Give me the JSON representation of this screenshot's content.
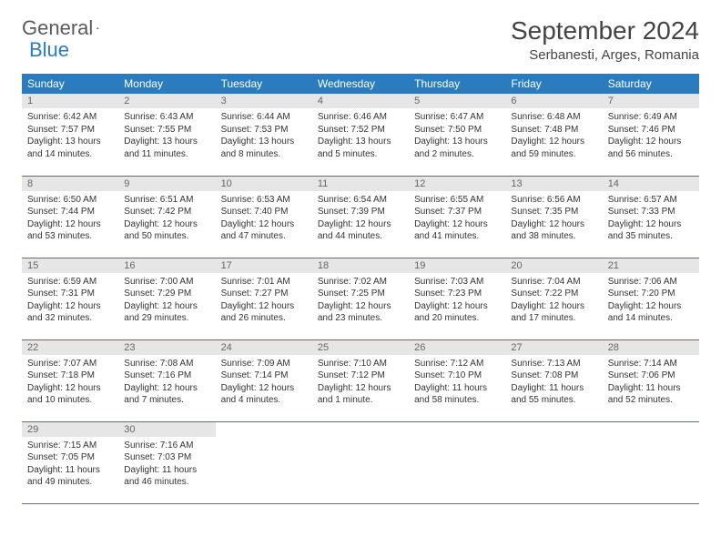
{
  "brand": {
    "part1": "General",
    "part2": "Blue"
  },
  "title": "September 2024",
  "location": "Serbanesti, Arges, Romania",
  "colors": {
    "header_bg": "#2b7bbf",
    "daynum_bg": "#e6e6e6",
    "rule": "#2b7bbf",
    "text": "#333333",
    "title": "#444444"
  },
  "weekdays": [
    "Sunday",
    "Monday",
    "Tuesday",
    "Wednesday",
    "Thursday",
    "Friday",
    "Saturday"
  ],
  "weeks": [
    [
      {
        "n": "1",
        "sr": "Sunrise: 6:42 AM",
        "ss": "Sunset: 7:57 PM",
        "dl": "Daylight: 13 hours and 14 minutes."
      },
      {
        "n": "2",
        "sr": "Sunrise: 6:43 AM",
        "ss": "Sunset: 7:55 PM",
        "dl": "Daylight: 13 hours and 11 minutes."
      },
      {
        "n": "3",
        "sr": "Sunrise: 6:44 AM",
        "ss": "Sunset: 7:53 PM",
        "dl": "Daylight: 13 hours and 8 minutes."
      },
      {
        "n": "4",
        "sr": "Sunrise: 6:46 AM",
        "ss": "Sunset: 7:52 PM",
        "dl": "Daylight: 13 hours and 5 minutes."
      },
      {
        "n": "5",
        "sr": "Sunrise: 6:47 AM",
        "ss": "Sunset: 7:50 PM",
        "dl": "Daylight: 13 hours and 2 minutes."
      },
      {
        "n": "6",
        "sr": "Sunrise: 6:48 AM",
        "ss": "Sunset: 7:48 PM",
        "dl": "Daylight: 12 hours and 59 minutes."
      },
      {
        "n": "7",
        "sr": "Sunrise: 6:49 AM",
        "ss": "Sunset: 7:46 PM",
        "dl": "Daylight: 12 hours and 56 minutes."
      }
    ],
    [
      {
        "n": "8",
        "sr": "Sunrise: 6:50 AM",
        "ss": "Sunset: 7:44 PM",
        "dl": "Daylight: 12 hours and 53 minutes."
      },
      {
        "n": "9",
        "sr": "Sunrise: 6:51 AM",
        "ss": "Sunset: 7:42 PM",
        "dl": "Daylight: 12 hours and 50 minutes."
      },
      {
        "n": "10",
        "sr": "Sunrise: 6:53 AM",
        "ss": "Sunset: 7:40 PM",
        "dl": "Daylight: 12 hours and 47 minutes."
      },
      {
        "n": "11",
        "sr": "Sunrise: 6:54 AM",
        "ss": "Sunset: 7:39 PM",
        "dl": "Daylight: 12 hours and 44 minutes."
      },
      {
        "n": "12",
        "sr": "Sunrise: 6:55 AM",
        "ss": "Sunset: 7:37 PM",
        "dl": "Daylight: 12 hours and 41 minutes."
      },
      {
        "n": "13",
        "sr": "Sunrise: 6:56 AM",
        "ss": "Sunset: 7:35 PM",
        "dl": "Daylight: 12 hours and 38 minutes."
      },
      {
        "n": "14",
        "sr": "Sunrise: 6:57 AM",
        "ss": "Sunset: 7:33 PM",
        "dl": "Daylight: 12 hours and 35 minutes."
      }
    ],
    [
      {
        "n": "15",
        "sr": "Sunrise: 6:59 AM",
        "ss": "Sunset: 7:31 PM",
        "dl": "Daylight: 12 hours and 32 minutes."
      },
      {
        "n": "16",
        "sr": "Sunrise: 7:00 AM",
        "ss": "Sunset: 7:29 PM",
        "dl": "Daylight: 12 hours and 29 minutes."
      },
      {
        "n": "17",
        "sr": "Sunrise: 7:01 AM",
        "ss": "Sunset: 7:27 PM",
        "dl": "Daylight: 12 hours and 26 minutes."
      },
      {
        "n": "18",
        "sr": "Sunrise: 7:02 AM",
        "ss": "Sunset: 7:25 PM",
        "dl": "Daylight: 12 hours and 23 minutes."
      },
      {
        "n": "19",
        "sr": "Sunrise: 7:03 AM",
        "ss": "Sunset: 7:23 PM",
        "dl": "Daylight: 12 hours and 20 minutes."
      },
      {
        "n": "20",
        "sr": "Sunrise: 7:04 AM",
        "ss": "Sunset: 7:22 PM",
        "dl": "Daylight: 12 hours and 17 minutes."
      },
      {
        "n": "21",
        "sr": "Sunrise: 7:06 AM",
        "ss": "Sunset: 7:20 PM",
        "dl": "Daylight: 12 hours and 14 minutes."
      }
    ],
    [
      {
        "n": "22",
        "sr": "Sunrise: 7:07 AM",
        "ss": "Sunset: 7:18 PM",
        "dl": "Daylight: 12 hours and 10 minutes."
      },
      {
        "n": "23",
        "sr": "Sunrise: 7:08 AM",
        "ss": "Sunset: 7:16 PM",
        "dl": "Daylight: 12 hours and 7 minutes."
      },
      {
        "n": "24",
        "sr": "Sunrise: 7:09 AM",
        "ss": "Sunset: 7:14 PM",
        "dl": "Daylight: 12 hours and 4 minutes."
      },
      {
        "n": "25",
        "sr": "Sunrise: 7:10 AM",
        "ss": "Sunset: 7:12 PM",
        "dl": "Daylight: 12 hours and 1 minute."
      },
      {
        "n": "26",
        "sr": "Sunrise: 7:12 AM",
        "ss": "Sunset: 7:10 PM",
        "dl": "Daylight: 11 hours and 58 minutes."
      },
      {
        "n": "27",
        "sr": "Sunrise: 7:13 AM",
        "ss": "Sunset: 7:08 PM",
        "dl": "Daylight: 11 hours and 55 minutes."
      },
      {
        "n": "28",
        "sr": "Sunrise: 7:14 AM",
        "ss": "Sunset: 7:06 PM",
        "dl": "Daylight: 11 hours and 52 minutes."
      }
    ],
    [
      {
        "n": "29",
        "sr": "Sunrise: 7:15 AM",
        "ss": "Sunset: 7:05 PM",
        "dl": "Daylight: 11 hours and 49 minutes."
      },
      {
        "n": "30",
        "sr": "Sunrise: 7:16 AM",
        "ss": "Sunset: 7:03 PM",
        "dl": "Daylight: 11 hours and 46 minutes."
      },
      null,
      null,
      null,
      null,
      null
    ]
  ]
}
